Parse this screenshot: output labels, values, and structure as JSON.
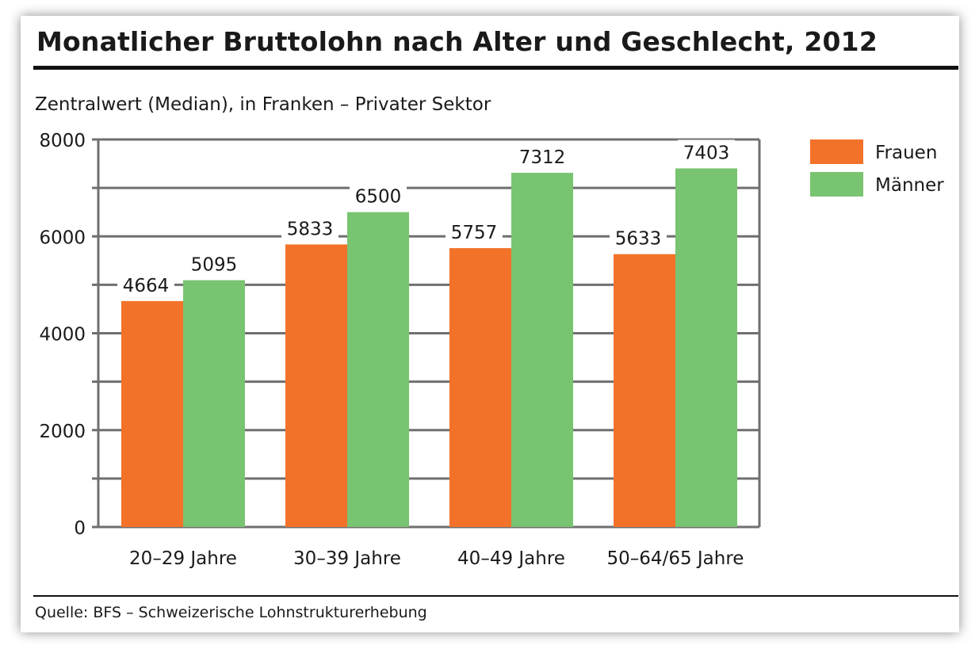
{
  "title": "Monatlicher Bruttolohn nach Alter und Geschlecht, 2012",
  "subtitle": "Zentralwert (Median), in Franken – Privater Sektor",
  "source": "Quelle: BFS – Schweizerische Lohnstrukturerhebung",
  "colors": {
    "frauen": "#f37229",
    "maenner": "#79c471",
    "grid": "#6f6f6f"
  },
  "chart_data": {
    "type": "bar",
    "title": "Monatlicher Bruttolohn nach Alter und Geschlecht, 2012",
    "ylabel": "Zentralwert (Median), in Franken – Privater Sektor",
    "xlabel": "",
    "ylim": [
      0,
      8000
    ],
    "yticks": [
      0,
      2000,
      4000,
      6000,
      8000
    ],
    "grid": true,
    "legend": "top-right",
    "categories": [
      "20–29 Jahre",
      "30–39 Jahre",
      "40–49 Jahre",
      "50–64/65 Jahre"
    ],
    "series": [
      {
        "name": "Frauen",
        "values": [
          4664,
          5833,
          5757,
          5633
        ]
      },
      {
        "name": "Männer",
        "values": [
          5095,
          6500,
          7312,
          7403
        ]
      }
    ]
  }
}
